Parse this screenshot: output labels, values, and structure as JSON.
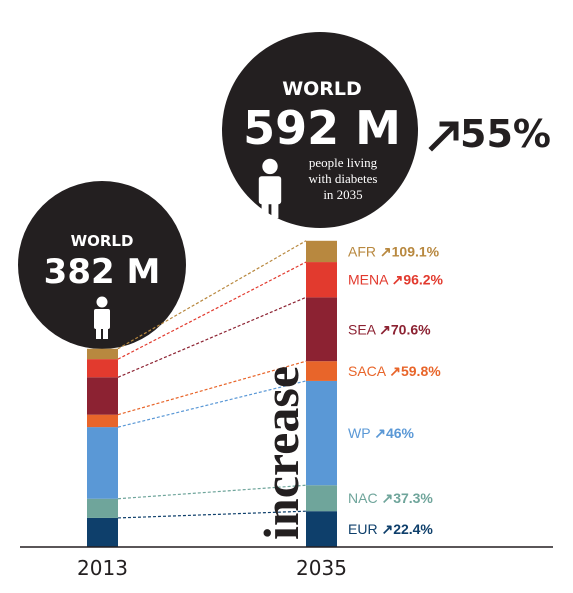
{
  "chart_data": {
    "type": "bar",
    "stacked": true,
    "categories": [
      "2013",
      "2035"
    ],
    "unit": "M",
    "totals": {
      "2013": 382,
      "2035": 592
    },
    "series": [
      {
        "name": "EUR",
        "color": "#0e3f6b",
        "values": [
          56,
          69
        ],
        "change": "22.4%"
      },
      {
        "name": "NAC",
        "color": "#6fa59b",
        "values": [
          37,
          50
        ],
        "change": "37.3%"
      },
      {
        "name": "WP",
        "color": "#5a98d6",
        "values": [
          138,
          201
        ],
        "change": "46%"
      },
      {
        "name": "SACA",
        "color": "#e8652a",
        "values": [
          24,
          38
        ],
        "change": "59.8%"
      },
      {
        "name": "SEA",
        "color": "#8c2232",
        "values": [
          72,
          123
        ],
        "change": "70.6%"
      },
      {
        "name": "MENA",
        "color": "#e23a2e",
        "values": [
          35,
          68
        ],
        "change": "96.2%"
      },
      {
        "name": "AFR",
        "color": "#b8883f",
        "values": [
          20,
          41
        ],
        "change": "109.1%"
      }
    ],
    "bubbles": [
      {
        "title": "WORLD",
        "value": "382 M"
      },
      {
        "title": "WORLD",
        "value": "592 M",
        "caption": [
          "people living",
          "with diabetes",
          "in 2035"
        ]
      }
    ],
    "increase_label": "increase",
    "total_change": "55%"
  }
}
